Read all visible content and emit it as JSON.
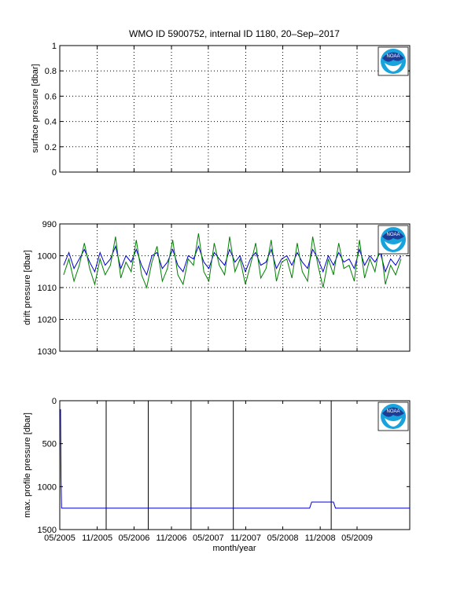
{
  "figure": {
    "title": "WMO ID 5900752, internal ID 1180, 20–Sep–2017",
    "xlabel": "month/year",
    "logo_label": "NOAA",
    "colors": {
      "series_blue": "#0000cc",
      "series_green": "#008000",
      "event_black": "#000000",
      "logo_blue": "#1d3c96",
      "logo_cyan": "#19a3dd"
    }
  },
  "chart_data": [
    {
      "type": "line",
      "ylabel": "surface pressure [dbar]",
      "ylim": [
        0,
        1
      ],
      "yticks": [
        "0",
        "0.2",
        "0.4",
        "0.6",
        "0.8",
        "1"
      ],
      "grid": true,
      "series": []
    },
    {
      "type": "line",
      "ylabel": "drift pressure [dbar]",
      "ylim": [
        990,
        1030
      ],
      "y_reversed": true,
      "yticks": [
        "990",
        "1000",
        "1010",
        "1020",
        "1030"
      ],
      "grid": true,
      "x_dates": [
        "2005-05-20",
        "2005-06-15",
        "2005-07-10",
        "2005-08-05",
        "2005-08-30",
        "2005-09-25",
        "2005-10-20",
        "2005-11-15",
        "2005-12-10",
        "2006-01-05",
        "2006-01-30",
        "2006-02-25",
        "2006-03-22",
        "2006-04-17",
        "2006-05-12",
        "2006-06-07",
        "2006-07-02",
        "2006-07-28",
        "2006-08-22",
        "2006-09-17",
        "2006-10-12",
        "2006-11-07",
        "2006-12-02",
        "2006-12-28",
        "2007-01-22",
        "2007-02-17",
        "2007-03-14",
        "2007-04-09",
        "2007-05-04",
        "2007-05-30",
        "2007-06-24",
        "2007-07-20",
        "2007-08-14",
        "2007-09-09",
        "2007-10-04",
        "2007-10-30",
        "2007-11-24",
        "2007-12-20",
        "2008-01-14",
        "2008-02-09",
        "2008-03-05",
        "2008-03-31",
        "2008-04-25",
        "2008-05-21",
        "2008-06-15",
        "2008-07-11",
        "2008-08-05",
        "2008-08-31",
        "2008-09-25",
        "2008-10-21",
        "2008-11-15",
        "2008-12-11",
        "2009-01-05",
        "2009-01-31",
        "2009-02-25",
        "2009-03-23",
        "2009-04-17",
        "2009-05-13",
        "2009-06-07",
        "2009-07-03",
        "2009-07-28",
        "2009-08-23",
        "2009-09-17",
        "2009-10-13",
        "2009-11-07",
        "2009-12-03"
      ],
      "series": [
        {
          "color": "#0000cc",
          "values": [
            1003,
            999,
            1004,
            1001,
            998,
            1002,
            1005,
            999,
            1003,
            1001,
            997,
            1004,
            1000,
            1002,
            998,
            1003,
            1006,
            1000,
            999,
            1004,
            1002,
            998,
            1003,
            1005,
            1000,
            1001,
            997,
            1002,
            1004,
            999,
            1001,
            1003,
            998,
            1002,
            1000,
            1005,
            1001,
            999,
            1003,
            1002,
            998,
            1004,
            1001,
            1000,
            1003,
            999,
            1002,
            1004,
            998,
            1001,
            1005,
            1000,
            1003,
            999,
            1002,
            1001,
            1004,
            998,
            1003,
            1000,
            1002,
            999,
            1005,
            1001,
            1003,
            1000
          ]
        },
        {
          "color": "#008000",
          "values": [
            1006,
            1001,
            1008,
            1003,
            996,
            1004,
            1009,
            1001,
            1006,
            1003,
            994,
            1007,
            1002,
            1005,
            995,
            1006,
            1010,
            1002,
            997,
            1008,
            1004,
            995,
            1006,
            1009,
            1001,
            1003,
            993,
            1005,
            1008,
            996,
            1003,
            1006,
            994,
            1005,
            1001,
            1009,
            1003,
            996,
            1007,
            1004,
            995,
            1008,
            1002,
            1001,
            1007,
            996,
            1005,
            1008,
            994,
            1003,
            1010,
            1001,
            1006,
            996,
            1004,
            1003,
            1008,
            995,
            1007,
            1001,
            1005,
            996,
            1009,
            1003,
            1006,
            1001
          ]
        }
      ]
    },
    {
      "type": "line",
      "ylabel": "max. profile pressure [dbar]",
      "ylim": [
        0,
        1500
      ],
      "y_reversed": true,
      "yticks": [
        "0",
        "500",
        "1000",
        "1500"
      ],
      "grid": false,
      "x_dates": [
        "2005-05-05",
        "2005-05-07",
        "2005-05-10",
        "2008-09-10",
        "2008-09-20",
        "2009-01-05",
        "2009-01-15",
        "2010-01-15"
      ],
      "series": [
        {
          "color": "#0000cc",
          "values": [
            100,
            900,
            1250,
            1250,
            1180,
            1180,
            1250,
            1250
          ]
        }
      ],
      "event_dates": [
        "2005-12-15",
        "2006-07-10",
        "2007-02-05",
        "2007-09-01",
        "2008-12-25"
      ]
    }
  ],
  "x_axis": {
    "range": [
      "2005-05-01",
      "2010-01-15"
    ],
    "ticks": [
      {
        "label": "05/2005",
        "date": "2005-05-01"
      },
      {
        "label": "11/2005",
        "date": "2005-11-01"
      },
      {
        "label": "05/2006",
        "date": "2006-05-01"
      },
      {
        "label": "11/2006",
        "date": "2006-11-01"
      },
      {
        "label": "05/2007",
        "date": "2007-05-01"
      },
      {
        "label": "11/2007",
        "date": "2007-11-01"
      },
      {
        "label": "05/2008",
        "date": "2008-05-01"
      },
      {
        "label": "11/2008",
        "date": "2008-11-01"
      },
      {
        "label": "05/2009",
        "date": "2009-05-01"
      }
    ]
  }
}
